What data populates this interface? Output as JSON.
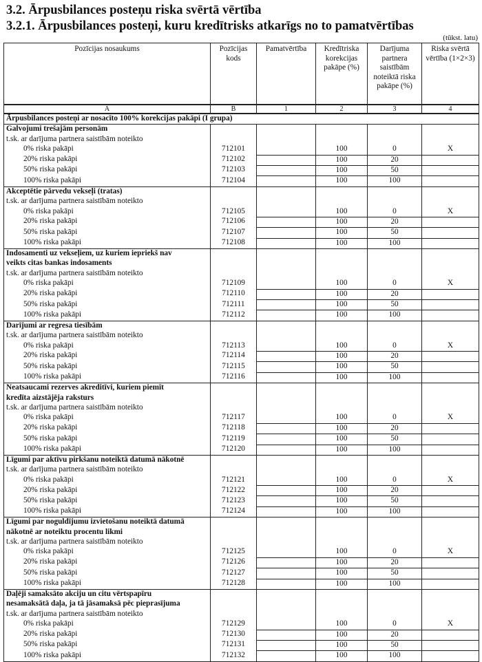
{
  "title": "3.2. Ārpusbilances posteņu riska svērtā vērtība",
  "subtitle": "3.2.1. Ārpusbilances posteņi, kuru kredītrisks atkarīgs no to pamatvērtības",
  "unit": "(tūkst. latu)",
  "headers": [
    "Pozīcijas nosaukums",
    "Pozīcijas kods",
    "Pamatvērtība",
    "Kredītriska korekcijas pakāpe (%)",
    "Darījuma partnera saistībām noteiktā riska pakāpe (%)",
    "Riska svērtā vērtība (1×2×3)"
  ],
  "index": [
    "A",
    "B",
    "1",
    "2",
    "3",
    "4"
  ],
  "section": "Ārpusbilances posteņi ar nosacīto 100% korekcijas pakāpi (I grupa)",
  "sub_label": "t.sk. ar darījuma partnera saistībām noteikto",
  "row_labels": [
    "0% riska pakāpi",
    "20% riska pakāpi",
    "50% riska pakāpi",
    "100% riska pakāpi"
  ],
  "col2": [
    "100",
    "100",
    "100",
    "100"
  ],
  "col3": [
    "0",
    "20",
    "50",
    "100"
  ],
  "col4": [
    "X",
    "",
    "",
    ""
  ],
  "groups": [
    {
      "title": [
        "Galvojumi trešajām personām"
      ],
      "codes": [
        "712101",
        "712102",
        "712103",
        "712104"
      ]
    },
    {
      "title": [
        "Akceptētie pārvedu vekseļi (tratas)"
      ],
      "codes": [
        "712105",
        "712106",
        "712107",
        "712108"
      ]
    },
    {
      "title": [
        "Indosamenti uz vekseļiem, uz kuriem iepriekš nav",
        "veikts citas bankas indosaments"
      ],
      "codes": [
        "712109",
        "712110",
        "712111",
        "712112"
      ]
    },
    {
      "title": [
        "Darījumi ar regresa tiesībām"
      ],
      "codes": [
        "712113",
        "712114",
        "712115",
        "712116"
      ]
    },
    {
      "title": [
        "Neatsaucami rezerves akreditīvi, kuriem piemīt",
        "kredīta aizstājēja raksturs"
      ],
      "codes": [
        "712117",
        "712118",
        "712119",
        "712120"
      ]
    },
    {
      "title": [
        "Līgumi par aktīvu pirkšanu noteiktā datumā nākotnē"
      ],
      "codes": [
        "712121",
        "712122",
        "712123",
        "712124"
      ]
    },
    {
      "title": [
        "Līgumi par noguldījumu izvietošanu noteiktā datumā",
        "nākotnē ar noteiktu procentu likmi"
      ],
      "codes": [
        "712125",
        "712126",
        "712127",
        "712128"
      ]
    },
    {
      "title": [
        "Daļēji samaksāto akciju un citu vērtspapīru",
        "nesamaksātā daļa, ja tā jāsamaksā pēc pieprasījuma"
      ],
      "codes": [
        "712129",
        "712130",
        "712131",
        "712132"
      ]
    }
  ]
}
